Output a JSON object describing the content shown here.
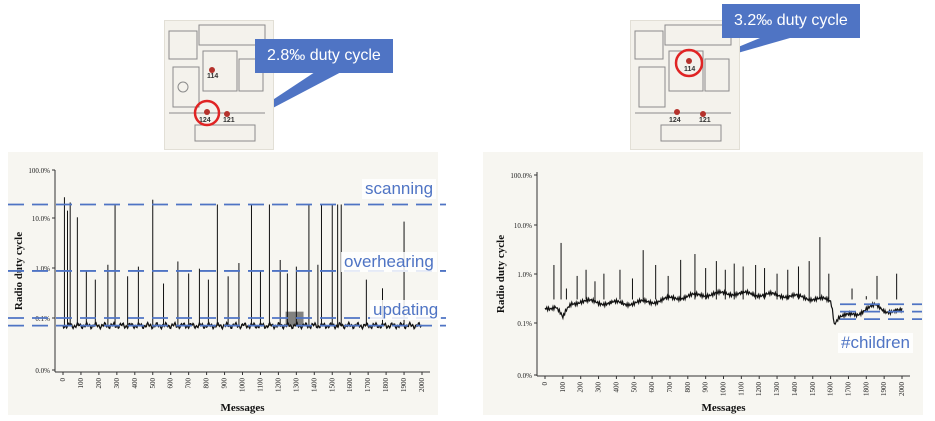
{
  "callouts": {
    "left": "2.8‰ duty cycle",
    "right": "3.2‰ duty cycle"
  },
  "floorplans": [
    {
      "node_labels": [
        "124",
        "121",
        "114"
      ],
      "highlighted": "124"
    },
    {
      "node_labels": [
        "124",
        "121",
        "114"
      ],
      "highlighted": "114"
    }
  ],
  "annotations": {
    "left": [
      "scanning",
      "overhearing",
      "updating"
    ],
    "right": [
      "#children"
    ]
  },
  "colors": {
    "accent": "#4f74c4",
    "trace": "#111111",
    "plot_bg": "#f7f6f1",
    "highlight_circle": "#e02424",
    "node_dot": "#b5322c"
  },
  "chart_data": [
    {
      "type": "line",
      "scale": "log",
      "xlabel": "Messages",
      "ylabel": "Radio duty cycle",
      "xlim": [
        0,
        2000
      ],
      "ylim": [
        0,
        100
      ],
      "y_ticks": [
        "100.0%",
        "10.0%",
        "1.0%",
        "0.1%",
        "0.0%"
      ],
      "x_ticks": [
        "0",
        "100",
        "200",
        "300",
        "400",
        "500",
        "600",
        "700",
        "800",
        "900",
        "1000",
        "1100",
        "1200",
        "1300",
        "1400",
        "1500",
        "1600",
        "1700",
        "1800",
        "1900",
        "2000"
      ],
      "reference_lines_percent": [
        20,
        0.9,
        0.1,
        0.07
      ],
      "baseline_percent": 0.07,
      "spikes": [
        {
          "x": 8,
          "y": 28
        },
        {
          "x": 25,
          "y": 15
        },
        {
          "x": 40,
          "y": 22
        },
        {
          "x": 80,
          "y": 11
        },
        {
          "x": 130,
          "y": 0.9
        },
        {
          "x": 180,
          "y": 0.6
        },
        {
          "x": 250,
          "y": 1.2
        },
        {
          "x": 290,
          "y": 20
        },
        {
          "x": 360,
          "y": 0.7
        },
        {
          "x": 420,
          "y": 1.1
        },
        {
          "x": 500,
          "y": 25
        },
        {
          "x": 560,
          "y": 0.5
        },
        {
          "x": 640,
          "y": 1.4
        },
        {
          "x": 700,
          "y": 0.8
        },
        {
          "x": 760,
          "y": 1.0
        },
        {
          "x": 810,
          "y": 0.6
        },
        {
          "x": 860,
          "y": 20
        },
        {
          "x": 920,
          "y": 0.7
        },
        {
          "x": 980,
          "y": 1.3
        },
        {
          "x": 1050,
          "y": 20
        },
        {
          "x": 1100,
          "y": 0.9
        },
        {
          "x": 1150,
          "y": 20
        },
        {
          "x": 1210,
          "y": 1.5
        },
        {
          "x": 1250,
          "y": 0.8
        },
        {
          "x": 1300,
          "y": 1.1
        },
        {
          "x": 1370,
          "y": 20
        },
        {
          "x": 1420,
          "y": 1.2
        },
        {
          "x": 1440,
          "y": 20
        },
        {
          "x": 1500,
          "y": 20
        },
        {
          "x": 1530,
          "y": 20
        },
        {
          "x": 1550,
          "y": 20
        },
        {
          "x": 1690,
          "y": 0.6
        },
        {
          "x": 1780,
          "y": 0.4
        },
        {
          "x": 1900,
          "y": 9
        }
      ]
    },
    {
      "type": "line",
      "scale": "log",
      "xlabel": "Messages",
      "ylabel": "Radio duty cycle",
      "xlim": [
        0,
        2000
      ],
      "ylim": [
        0,
        100
      ],
      "y_ticks": [
        "100.0%",
        "10.0%",
        "1.0%",
        "0.1%",
        "0.0%"
      ],
      "x_ticks": [
        "0",
        "100",
        "200",
        "300",
        "400",
        "500",
        "600",
        "700",
        "800",
        "900",
        "1000",
        "1100",
        "1200",
        "1300",
        "1400",
        "1500",
        "1600",
        "1700",
        "1800",
        "1900",
        "2000"
      ],
      "reference_lines_percent": [
        0.24,
        0.17,
        0.12
      ],
      "baseline": [
        [
          0,
          0.2
        ],
        [
          60,
          0.22
        ],
        [
          100,
          0.12
        ],
        [
          150,
          0.25
        ],
        [
          200,
          0.28
        ],
        [
          300,
          0.26
        ],
        [
          450,
          0.25
        ],
        [
          600,
          0.27
        ],
        [
          750,
          0.33
        ],
        [
          900,
          0.38
        ],
        [
          1050,
          0.4
        ],
        [
          1200,
          0.38
        ],
        [
          1350,
          0.36
        ],
        [
          1450,
          0.33
        ],
        [
          1550,
          0.3
        ],
        [
          1600,
          0.28
        ],
        [
          1620,
          0.1
        ],
        [
          1650,
          0.14
        ],
        [
          1700,
          0.14
        ],
        [
          1750,
          0.15
        ],
        [
          1800,
          0.2
        ],
        [
          1850,
          0.22
        ],
        [
          1900,
          0.18
        ],
        [
          2000,
          0.17
        ]
      ],
      "spikes": [
        {
          "x": 50,
          "y": 1.5
        },
        {
          "x": 90,
          "y": 4.2
        },
        {
          "x": 120,
          "y": 0.5
        },
        {
          "x": 180,
          "y": 0.9
        },
        {
          "x": 230,
          "y": 1.2
        },
        {
          "x": 280,
          "y": 0.7
        },
        {
          "x": 330,
          "y": 1.0
        },
        {
          "x": 420,
          "y": 1.2
        },
        {
          "x": 490,
          "y": 0.8
        },
        {
          "x": 550,
          "y": 3.0
        },
        {
          "x": 620,
          "y": 1.5
        },
        {
          "x": 690,
          "y": 0.9
        },
        {
          "x": 760,
          "y": 1.9
        },
        {
          "x": 840,
          "y": 2.5
        },
        {
          "x": 900,
          "y": 1.3
        },
        {
          "x": 960,
          "y": 1.8
        },
        {
          "x": 1010,
          "y": 1.2
        },
        {
          "x": 1060,
          "y": 1.6
        },
        {
          "x": 1110,
          "y": 1.4
        },
        {
          "x": 1180,
          "y": 1.5
        },
        {
          "x": 1230,
          "y": 1.3
        },
        {
          "x": 1300,
          "y": 1.0
        },
        {
          "x": 1360,
          "y": 1.2
        },
        {
          "x": 1420,
          "y": 1.4
        },
        {
          "x": 1480,
          "y": 1.8
        },
        {
          "x": 1540,
          "y": 5.5
        },
        {
          "x": 1590,
          "y": 1.0
        },
        {
          "x": 1720,
          "y": 0.5
        },
        {
          "x": 1800,
          "y": 0.35
        },
        {
          "x": 1860,
          "y": 0.9
        },
        {
          "x": 1970,
          "y": 1.0
        }
      ]
    }
  ]
}
